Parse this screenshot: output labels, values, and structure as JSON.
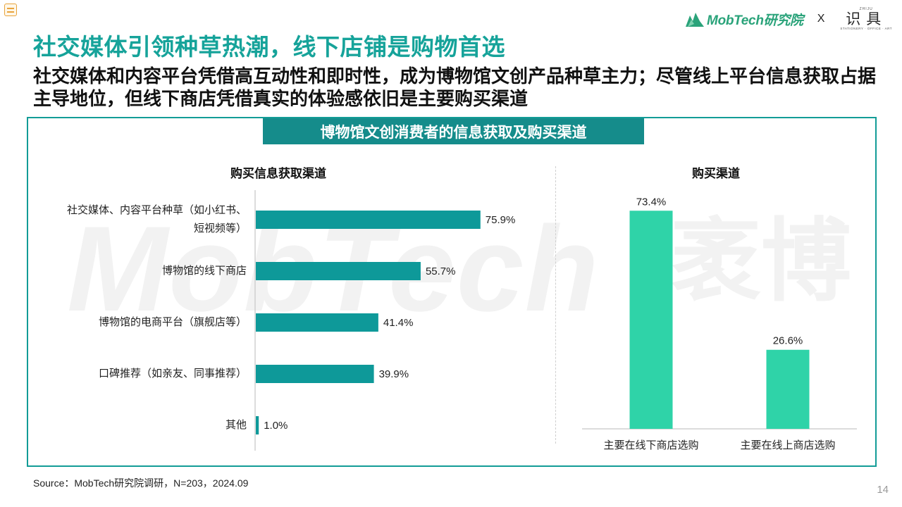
{
  "header": {
    "brand_name": "MobTech研究院",
    "separator": "X",
    "partner_small": "ZHIJU",
    "partner_name": "识具",
    "partner_tagline": "STATIONERY · OFFICE · ART",
    "title": "社交媒体引领种草热潮，线下店铺是购物首选",
    "subtitle": "社交媒体和内容平台凭借高互动性和即时性，成为博物馆文创产品种草主力；尽管线上平台信息获取占据主导地位，但线下商店凭借真实的体验感依旧是主要购买渠道"
  },
  "panel": {
    "title": "博物馆文创消费者的信息获取及购买渠道"
  },
  "watermark": {
    "latin": "MobTech",
    "chinese": "袤博"
  },
  "colors": {
    "teal_bar": "#0e9999",
    "mint_bar": "#2fd3a8",
    "title": "#16a39a",
    "panel_border": "#139c97",
    "panel_header": "#158c8b"
  },
  "chart_data": [
    {
      "type": "bar",
      "orientation": "horizontal",
      "title": "购买信息获取渠道",
      "categories": [
        [
          "社交媒体、内容平台种草（如小红书、",
          "短视频等）"
        ],
        [
          "博物馆的线下商店"
        ],
        [
          "博物馆的电商平台（旗舰店等）"
        ],
        [
          "口碑推荐（如亲友、同事推荐）"
        ],
        [
          "其他"
        ]
      ],
      "values": [
        75.9,
        55.7,
        41.4,
        39.9,
        1.0
      ],
      "value_labels": [
        "75.9%",
        "55.7%",
        "41.4%",
        "39.9%",
        "1.0%"
      ],
      "unit": "%",
      "xlim": [
        0,
        100
      ],
      "grid": false,
      "color": "#0e9999"
    },
    {
      "type": "bar",
      "orientation": "vertical",
      "title": "购买渠道",
      "categories": [
        "主要在线下商店选购",
        "主要在线上商店选购"
      ],
      "values": [
        73.4,
        26.6
      ],
      "value_labels": [
        "73.4%",
        "26.6%"
      ],
      "unit": "%",
      "ylim": [
        0,
        100
      ],
      "grid": false,
      "color": "#2fd3a8"
    }
  ],
  "footer": {
    "source": "Source：MobTech研究院调研，N=203，2024.09",
    "page_number": "14"
  }
}
